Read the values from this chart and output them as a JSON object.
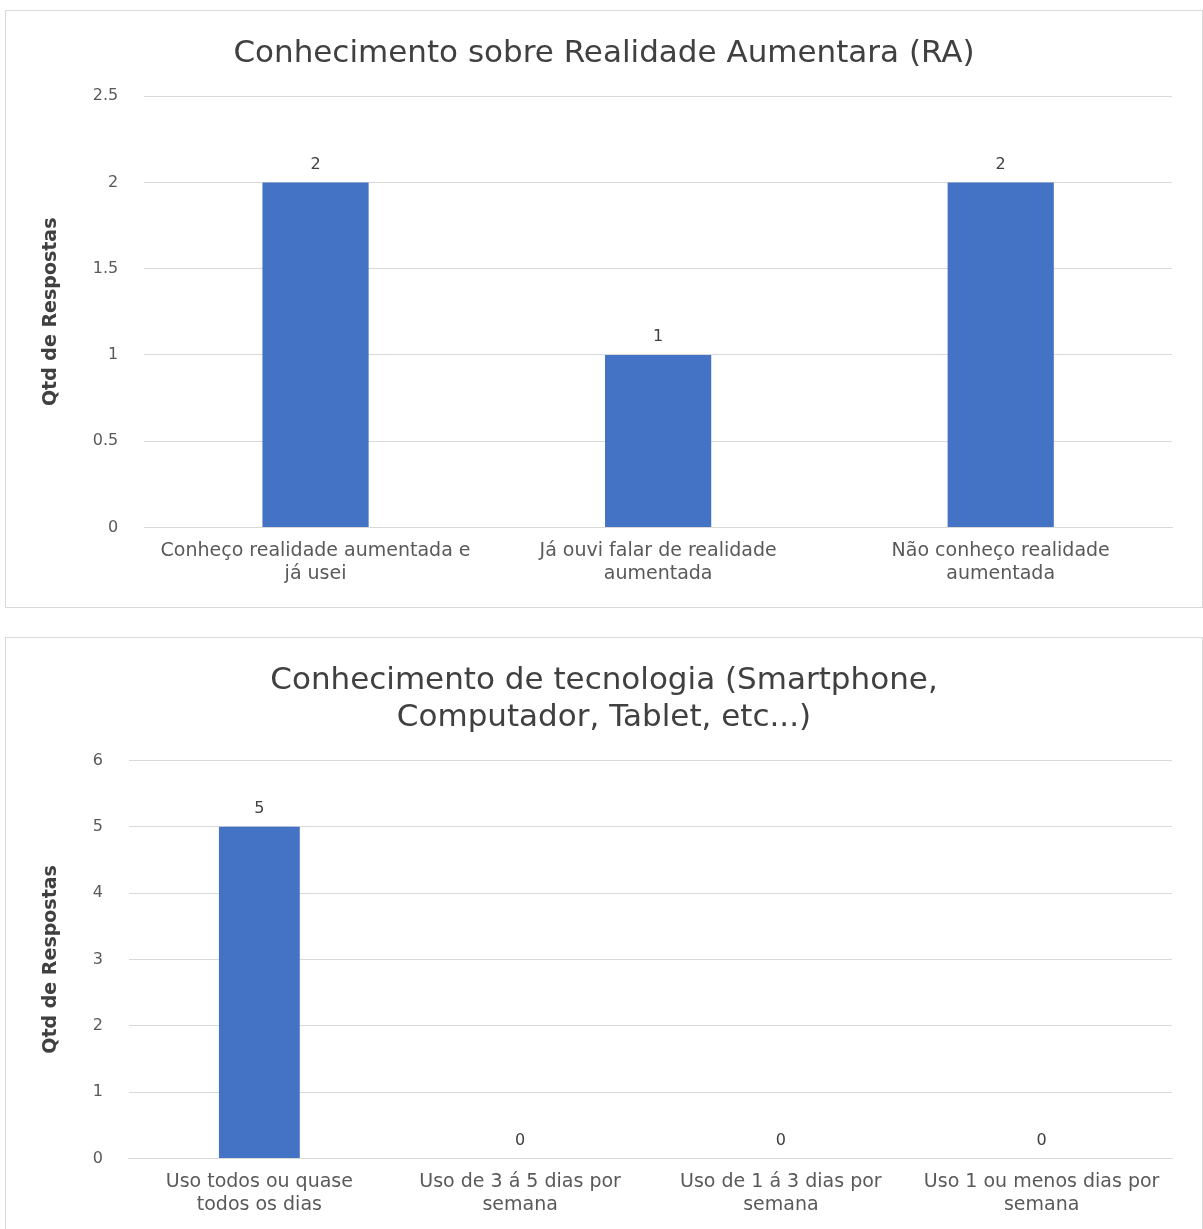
{
  "chart_data": [
    {
      "type": "bar",
      "title": "Conhecimento sobre Realidade Aumentara (RA)",
      "ylabel": "Qtd de Respostas",
      "categories": [
        "Conheço realidade aumentada e já usei",
        "Já ouvi falar de realidade aumentada",
        "Não conheço realidade aumentada"
      ],
      "values": [
        2,
        1,
        2
      ],
      "color": "#4472c4",
      "ylim": [
        0,
        2.5
      ],
      "yticks": [
        0,
        0.5,
        1,
        1.5,
        2,
        2.5
      ],
      "grid": "y",
      "legend": false,
      "data_labels": true
    },
    {
      "type": "bar",
      "title": "Conhecimento de tecnologia (Smartphone, Computador, Tablet, etc...)",
      "ylabel": "Qtd de Respostas",
      "categories": [
        "Uso todos ou quase todos os dias",
        "Uso de 3 á 5 dias por semana",
        "Uso de 1 á 3 dias por semana",
        "Uso 1 ou menos dias por semana"
      ],
      "values": [
        5,
        0,
        0,
        0
      ],
      "color": "#4472c4",
      "ylim": [
        0,
        6
      ],
      "yticks": [
        0,
        1,
        2,
        3,
        4,
        5,
        6
      ],
      "grid": "y",
      "legend": false,
      "data_labels": true
    }
  ]
}
